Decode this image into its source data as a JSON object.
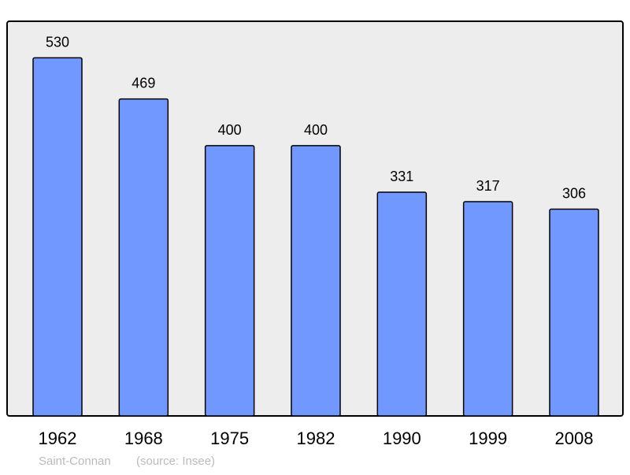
{
  "chart_data": {
    "type": "bar",
    "categories": [
      "1962",
      "1968",
      "1975",
      "1982",
      "1990",
      "1999",
      "2008"
    ],
    "values": [
      530,
      469,
      400,
      400,
      331,
      317,
      306
    ],
    "title": "",
    "xlabel": "",
    "ylabel": "",
    "ylim": [
      0,
      584
    ],
    "grid": false,
    "data_labels": true,
    "colors": {
      "bar": "#7098ff",
      "background": "#ededed",
      "border": "#000000",
      "footer": "#bbbbbb"
    }
  },
  "footer": {
    "place": "Saint-Connan",
    "source": "(source: Insee)"
  }
}
